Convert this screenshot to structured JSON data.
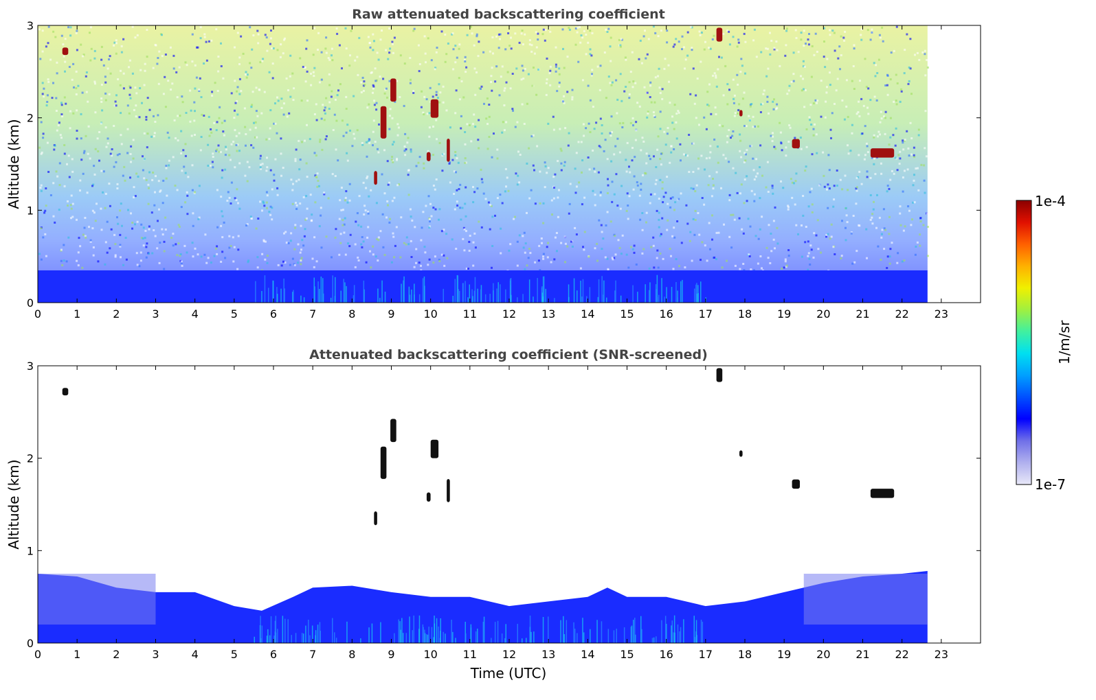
{
  "chart_data": [
    {
      "type": "heatmap",
      "title": "Raw attenuated backscattering coefficient",
      "xlabel": "",
      "ylabel": "Altitude (km)",
      "xlim": [
        0,
        24
      ],
      "ylim": [
        0,
        3
      ],
      "x_ticks": [
        "0",
        "1",
        "2",
        "3",
        "4",
        "5",
        "6",
        "7",
        "8",
        "9",
        "10",
        "11",
        "12",
        "13",
        "14",
        "15",
        "16",
        "17",
        "18",
        "19",
        "20",
        "21",
        "22",
        "23"
      ],
      "y_ticks": [
        "0",
        "1",
        "2",
        "3"
      ],
      "data_end_time": 22.65,
      "layers": [
        {
          "feature": "dense boundary layer / near-surface aerosol",
          "x_range": [
            0,
            22.65
          ],
          "y_range": [
            0,
            0.35
          ],
          "level": 0.35
        },
        {
          "feature": "noisy background signal increasing with altitude",
          "x_range": [
            0,
            22.65
          ],
          "y_range": [
            0.35,
            3.0
          ],
          "level": 0.5
        }
      ],
      "clouds": [
        {
          "x": 0.7,
          "y": 2.72,
          "w": 0.15,
          "h": 0.08
        },
        {
          "x": 8.6,
          "y": 1.35,
          "w": 0.08,
          "h": 0.15
        },
        {
          "x": 8.8,
          "y": 1.95,
          "w": 0.15,
          "h": 0.35
        },
        {
          "x": 9.05,
          "y": 2.3,
          "w": 0.15,
          "h": 0.25
        },
        {
          "x": 9.95,
          "y": 1.58,
          "w": 0.1,
          "h": 0.1
        },
        {
          "x": 10.1,
          "y": 2.1,
          "w": 0.2,
          "h": 0.2
        },
        {
          "x": 10.45,
          "y": 1.65,
          "w": 0.08,
          "h": 0.25
        },
        {
          "x": 17.35,
          "y": 2.9,
          "w": 0.15,
          "h": 0.15
        },
        {
          "x": 17.9,
          "y": 2.05,
          "w": 0.08,
          "h": 0.07
        },
        {
          "x": 19.3,
          "y": 1.72,
          "w": 0.2,
          "h": 0.1
        },
        {
          "x": 21.5,
          "y": 1.62,
          "w": 0.6,
          "h": 0.1
        }
      ]
    },
    {
      "type": "heatmap",
      "title": "Attenuated backscattering coefficient (SNR-screened)",
      "xlabel": "Time (UTC)",
      "ylabel": "Altitude (km)",
      "xlim": [
        0,
        24
      ],
      "ylim": [
        0,
        3
      ],
      "x_ticks": [
        "0",
        "1",
        "2",
        "3",
        "4",
        "5",
        "6",
        "7",
        "8",
        "9",
        "10",
        "11",
        "12",
        "13",
        "14",
        "15",
        "16",
        "17",
        "18",
        "19",
        "20",
        "21",
        "22",
        "23"
      ],
      "y_ticks": [
        "0",
        "1",
        "2",
        "3"
      ],
      "data_end_time": 22.65,
      "boundary_layer_top_km": [
        [
          0,
          0.75
        ],
        [
          1,
          0.72
        ],
        [
          2,
          0.6
        ],
        [
          3,
          0.55
        ],
        [
          4,
          0.55
        ],
        [
          5,
          0.4
        ],
        [
          5.7,
          0.35
        ],
        [
          6.5,
          0.5
        ],
        [
          7,
          0.6
        ],
        [
          8,
          0.62
        ],
        [
          9,
          0.55
        ],
        [
          10,
          0.5
        ],
        [
          11,
          0.5
        ],
        [
          12,
          0.4
        ],
        [
          13,
          0.45
        ],
        [
          14,
          0.5
        ],
        [
          14.5,
          0.6
        ],
        [
          15,
          0.5
        ],
        [
          16,
          0.5
        ],
        [
          17,
          0.4
        ],
        [
          18,
          0.45
        ],
        [
          19,
          0.55
        ],
        [
          20,
          0.65
        ],
        [
          21,
          0.72
        ],
        [
          22,
          0.75
        ],
        [
          22.65,
          0.78
        ]
      ],
      "clouds": [
        {
          "x": 0.7,
          "y": 2.72,
          "w": 0.15,
          "h": 0.08
        },
        {
          "x": 8.6,
          "y": 1.35,
          "w": 0.08,
          "h": 0.15
        },
        {
          "x": 8.8,
          "y": 1.95,
          "w": 0.15,
          "h": 0.35
        },
        {
          "x": 9.05,
          "y": 2.3,
          "w": 0.15,
          "h": 0.25
        },
        {
          "x": 9.95,
          "y": 1.58,
          "w": 0.1,
          "h": 0.1
        },
        {
          "x": 10.1,
          "y": 2.1,
          "w": 0.2,
          "h": 0.2
        },
        {
          "x": 10.45,
          "y": 1.65,
          "w": 0.08,
          "h": 0.25
        },
        {
          "x": 17.35,
          "y": 2.9,
          "w": 0.15,
          "h": 0.15
        },
        {
          "x": 17.9,
          "y": 2.05,
          "w": 0.08,
          "h": 0.07
        },
        {
          "x": 19.3,
          "y": 1.72,
          "w": 0.2,
          "h": 0.1
        },
        {
          "x": 21.5,
          "y": 1.62,
          "w": 0.6,
          "h": 0.1
        }
      ]
    }
  ],
  "colorbar": {
    "label": "1/m/sr",
    "max_label": "1e-4",
    "min_label": "1e-7",
    "scale": "log",
    "colormap": [
      "#e8e8f8",
      "#b0b0ee",
      "#7070e8",
      "#0000ff",
      "#0050ff",
      "#00a0ff",
      "#00e0f0",
      "#40f0a0",
      "#a0f040",
      "#f0f000",
      "#ffb000",
      "#ff6000",
      "#e01000",
      "#8b0000"
    ]
  }
}
